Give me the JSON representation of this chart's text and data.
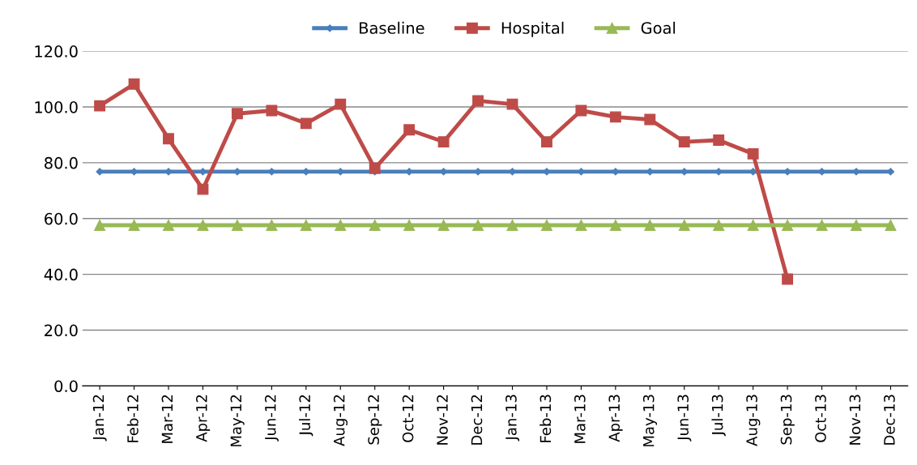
{
  "chart_data": {
    "type": "line",
    "categories": [
      "Jan-12",
      "Feb-12",
      "Mar-12",
      "Apr-12",
      "May-12",
      "Jun-12",
      "Jul-12",
      "Aug-12",
      "Sep-12",
      "Oct-12",
      "Nov-12",
      "Dec-12",
      "Jan-13",
      "Feb-13",
      "Mar-13",
      "Apr-13",
      "May-13",
      "Jun-13",
      "Jul-13",
      "Aug-13",
      "Sep-13",
      "Oct-13",
      "Nov-13",
      "Dec-13"
    ],
    "series": [
      {
        "name": "Baseline",
        "color": "#4a7ebb",
        "marker": "diamond",
        "values": [
          76.8,
          76.8,
          76.8,
          76.8,
          76.8,
          76.8,
          76.8,
          76.8,
          76.8,
          76.8,
          76.8,
          76.8,
          76.8,
          76.8,
          76.8,
          76.8,
          76.8,
          76.8,
          76.8,
          76.8,
          76.8,
          76.8,
          76.8,
          76.8
        ]
      },
      {
        "name": "Hospital",
        "color": "#be4b48",
        "marker": "square",
        "values": [
          100.4,
          108.2,
          88.6,
          70.5,
          97.6,
          98.7,
          94.1,
          101.0,
          78.0,
          91.8,
          87.5,
          102.2,
          101.0,
          87.5,
          98.7,
          96.4,
          95.5,
          87.5,
          88.1,
          83.2,
          38.3,
          null,
          null,
          null
        ]
      },
      {
        "name": "Goal",
        "color": "#98b954",
        "marker": "triangle",
        "values": [
          57.6,
          57.6,
          57.6,
          57.6,
          57.6,
          57.6,
          57.6,
          57.6,
          57.6,
          57.6,
          57.6,
          57.6,
          57.6,
          57.6,
          57.6,
          57.6,
          57.6,
          57.6,
          57.6,
          57.6,
          57.6,
          57.6,
          57.6,
          57.6
        ]
      }
    ],
    "ylim": [
      0,
      120
    ],
    "yticks": [
      {
        "value": 0,
        "label": "0.0"
      },
      {
        "value": 20,
        "label": "20.0"
      },
      {
        "value": 40,
        "label": "40.0"
      },
      {
        "value": 60,
        "label": "60.0"
      },
      {
        "value": 80,
        "label": "80.0"
      },
      {
        "value": 100,
        "label": "100.0"
      },
      {
        "value": 120,
        "label": "120.0"
      }
    ],
    "grid": "y",
    "legend": "top",
    "line_style": "solid"
  }
}
